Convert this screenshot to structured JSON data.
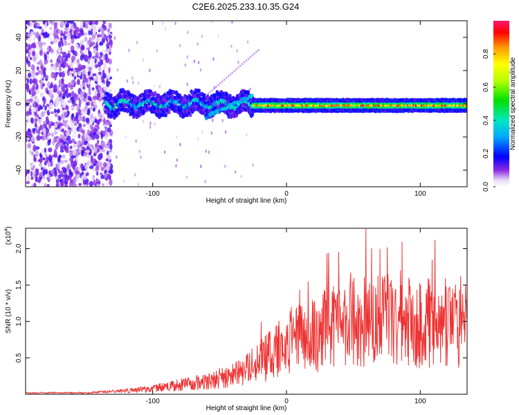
{
  "title": "C2E6.2025.233.10.35.G24",
  "chart_data": [
    {
      "type": "heatmap",
      "id": "spectrogram",
      "xlabel": "Height of straight line (km)",
      "ylabel": "Frequency (Hz)",
      "xlim": [
        -195,
        135
      ],
      "ylim": [
        -50,
        50
      ],
      "xticks": [
        -100,
        0,
        100
      ],
      "yticks": [
        -40,
        -20,
        0,
        20,
        40
      ],
      "xtick_labels": [
        "-100",
        "0",
        "100"
      ],
      "ytick_labels": [
        "-40",
        "-20",
        "0",
        "20",
        "40"
      ],
      "colorbar": {
        "label": "Normalized spectral amplitude",
        "range": [
          0,
          1
        ],
        "ticks": [
          0.0,
          0.2,
          0.4,
          0.6,
          0.8
        ],
        "tick_labels": [
          "0.0",
          "0.2",
          "0.4",
          "0.6",
          "0.8"
        ]
      },
      "features": [
        {
          "name": "broadband noise region",
          "x_range": [
            -195,
            -135
          ],
          "y_range": [
            -50,
            50
          ],
          "amplitude": 0.05
        },
        {
          "name": "wobbling signal",
          "x_range": [
            -135,
            -25
          ],
          "center_hz": 0,
          "spread_hz": 6,
          "amplitude_range": [
            0.2,
            0.45
          ]
        },
        {
          "name": "drifting branch",
          "x_range": [
            -60,
            -25
          ],
          "start_hz": -8,
          "end_hz": 5
        },
        {
          "name": "stable carrier",
          "x_range": [
            -25,
            135
          ],
          "center_hz": -1,
          "amplitude_peak": 1.0
        }
      ]
    },
    {
      "type": "line",
      "id": "snr",
      "xlabel": "Height of straight line (km)",
      "ylabel": "SNR (10 * v/v)",
      "y_scale_label": "(x10",
      "y_scale_exponent": "4",
      "xlim": [
        -195,
        135
      ],
      "ylim": [
        0,
        2.28
      ],
      "xticks": [
        -100,
        0,
        100
      ],
      "yticks": [
        0.5,
        1.0,
        1.5,
        2.0
      ],
      "xtick_labels": [
        "-100",
        "0",
        "100"
      ],
      "ytick_labels": [
        "0.5",
        "1.0",
        "1.5",
        "2.0"
      ],
      "color": "#ee3333",
      "series": [
        {
          "name": "SNR",
          "x": [
            -195,
            -150,
            -120,
            -100,
            -80,
            -60,
            -40,
            -20,
            0,
            20,
            40,
            60,
            80,
            100,
            120,
            135
          ],
          "y": [
            0.02,
            0.02,
            0.05,
            0.08,
            0.13,
            0.18,
            0.27,
            0.45,
            0.7,
            0.85,
            0.95,
            1.05,
            1.0,
            1.0,
            1.0,
            1.02
          ]
        }
      ]
    }
  ]
}
